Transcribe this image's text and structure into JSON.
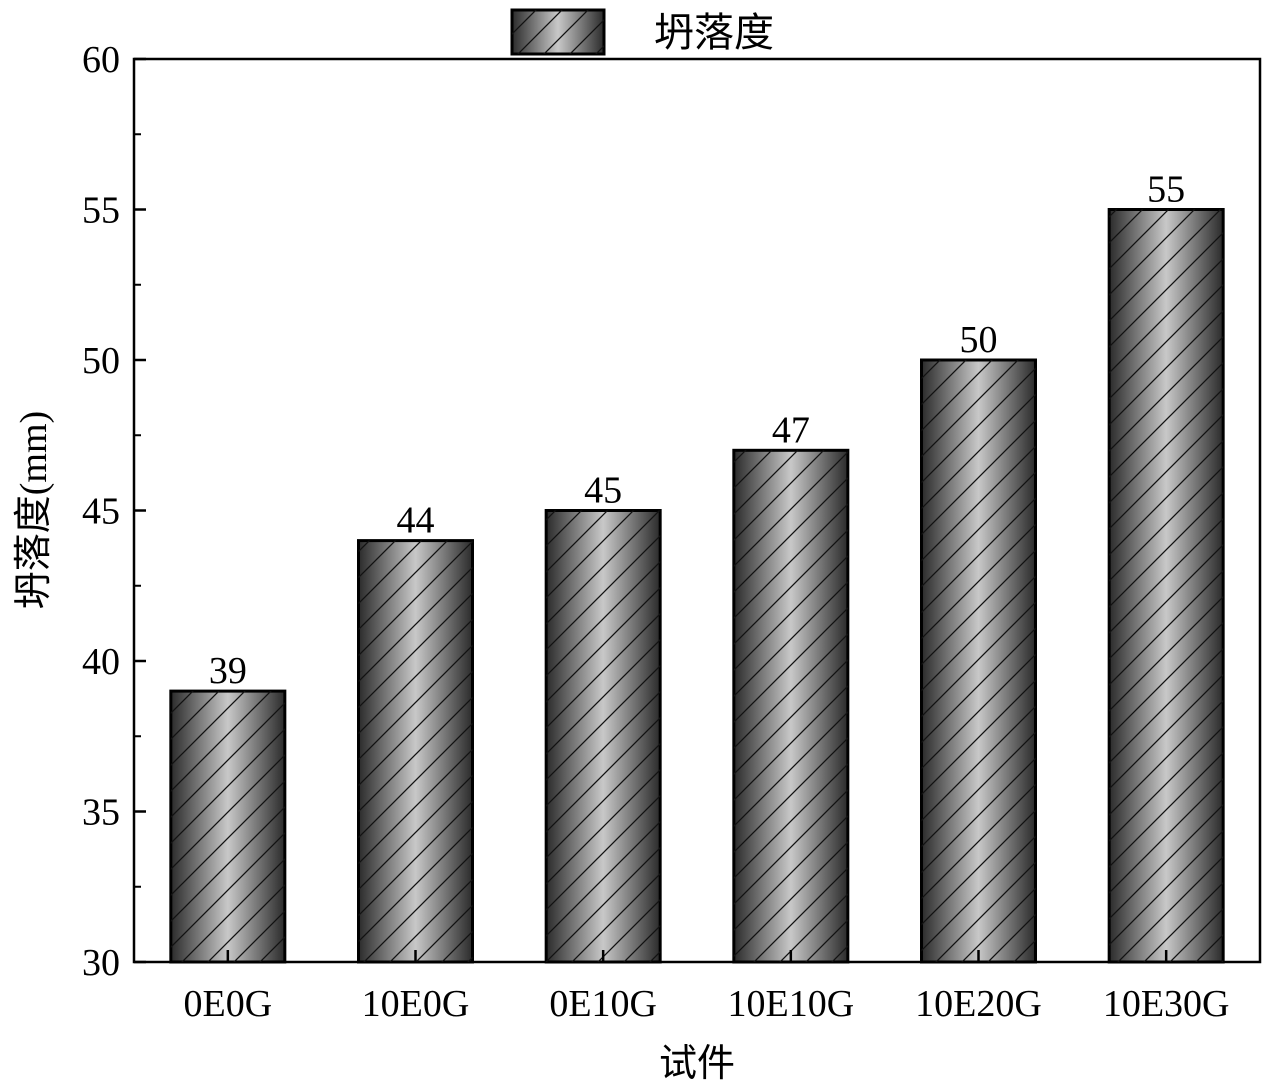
{
  "chart_data": {
    "type": "bar",
    "title": "",
    "xlabel": "试件",
    "ylabel": "坍落度(mm)",
    "categories": [
      "0E0G",
      "10E0G",
      "0E10G",
      "10E10G",
      "10E20G",
      "10E30G"
    ],
    "series": [
      {
        "name": "坍落度",
        "values": [
          39,
          44,
          45,
          47,
          50,
          55
        ]
      }
    ],
    "data_labels": [
      "39",
      "44",
      "45",
      "47",
      "50",
      "55"
    ],
    "ylim": [
      30,
      60
    ],
    "yticks": [
      30,
      35,
      40,
      45,
      50,
      55,
      60
    ],
    "grid": false,
    "legend_position": "top-center",
    "bar_style": "gray gradient with diagonal hatch, black outline",
    "colors": {
      "bar_dark": "#2b2b2b",
      "bar_light": "#c8c8c8",
      "outline": "#000000"
    }
  }
}
